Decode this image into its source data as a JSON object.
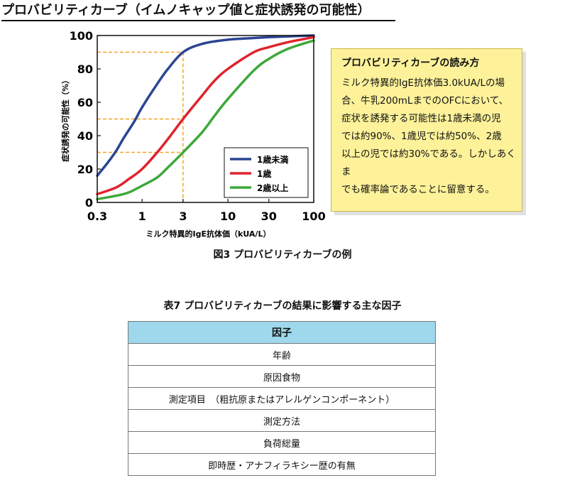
{
  "page_title": "プロバビリティカーブ（イムノキャップ値と症状誘発の可能性）",
  "chart_data": {
    "type": "line",
    "xlabel": "ミルク特異的IgE抗体価（kUA/L）",
    "ylabel": "症状誘発の可能性（%）",
    "xscale": "log",
    "xlim": [
      0.3,
      100
    ],
    "ylim": [
      0,
      100
    ],
    "xticks": [
      0.3,
      1,
      3,
      10,
      30,
      100
    ],
    "xtick_labels": [
      "0.3",
      "1",
      "3",
      "10",
      "30",
      "100"
    ],
    "yticks": [
      0,
      20,
      40,
      60,
      80,
      100
    ],
    "ytick_labels": [
      "0",
      "20",
      "40",
      "60",
      "80",
      "100"
    ],
    "legend_position": "bottom-right",
    "series": [
      {
        "name": "1歳未満",
        "color": "#2b4593",
        "x": [
          0.3,
          0.4,
          0.5,
          0.6,
          0.8,
          1,
          1.5,
          2,
          3,
          5,
          10,
          20,
          30,
          50,
          100
        ],
        "y": [
          16,
          24,
          31,
          38,
          48,
          57,
          71,
          80,
          90,
          95,
          97.5,
          98.5,
          99,
          99.5,
          100
        ]
      },
      {
        "name": "1歳",
        "color": "#e0232e",
        "x": [
          0.3,
          0.5,
          0.7,
          1,
          1.5,
          2,
          3,
          5,
          7,
          10,
          20,
          30,
          50,
          100
        ],
        "y": [
          5,
          9,
          14,
          20,
          30,
          38,
          50,
          64,
          73,
          80,
          90,
          93,
          96,
          99
        ]
      },
      {
        "name": "2歳以上",
        "color": "#3ea83a",
        "x": [
          0.3,
          0.5,
          0.7,
          1,
          1.5,
          2,
          3,
          5,
          7,
          10,
          20,
          30,
          50,
          100
        ],
        "y": [
          2,
          4,
          6,
          10,
          15,
          21,
          30,
          42,
          52,
          62,
          79,
          86,
          92,
          97
        ]
      }
    ],
    "reference_lines": [
      {
        "x": 3,
        "y": 90
      },
      {
        "x": 3,
        "y": 50
      },
      {
        "x": 3,
        "y": 30
      }
    ],
    "reference_color": "#f5a623"
  },
  "note": {
    "title": "プロバビリティカーブの読み方",
    "lines": [
      "ミルク特異的IgE抗体価3.0kUA/Lの場",
      "合、牛乳200mLまでのOFCにおいて、",
      "症状を誘発する可能性は1歳未満の児",
      "では約90%、1歳児では約50%、2歳",
      "以上の児では約30%である。しかしあくま",
      "でも確率論であることに留意する。"
    ]
  },
  "figure_caption": "図3  プロバビリティカーブの例",
  "table": {
    "caption": "表7  プロバビリティカーブの結果に影響する主な因子",
    "header": "因子",
    "rows": [
      "年齢",
      "原因食物",
      "測定項目　（粗抗原またはアレルゲンコンポーネント）",
      "測定方法",
      "負荷総量",
      "即時歴・アナフィラキシー歴の有無"
    ]
  }
}
